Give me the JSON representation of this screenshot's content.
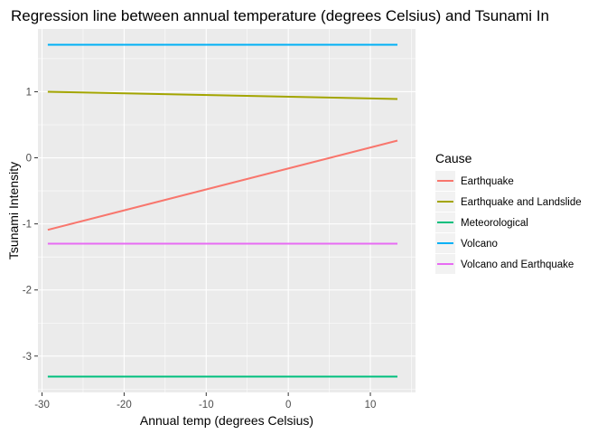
{
  "chart_data": {
    "type": "line",
    "title": "Regression line between annual temperature (degrees Celsius) and Tsunami In",
    "xlabel": "Annual temp (degrees Celsius)",
    "ylabel": "Tsunami Intensity",
    "xlim": [
      -30.5,
      15.5
    ],
    "ylim": [
      -3.55,
      1.95
    ],
    "xticks": [
      -30,
      -20,
      -10,
      0,
      10
    ],
    "xtick_labels": [
      "-30",
      "-20",
      "-10",
      "0",
      "10"
    ],
    "yticks": [
      -3,
      -2,
      -1,
      0,
      1
    ],
    "ytick_labels": [
      "-3",
      "-2",
      "-1",
      "0",
      "1"
    ],
    "grid": true,
    "legend_title": "Cause",
    "legend_position": "right",
    "series": [
      {
        "name": "Earthquake",
        "color": "#F8766D",
        "x": [
          -29.3,
          13.3
        ],
        "y": [
          -1.09,
          0.26
        ]
      },
      {
        "name": "Earthquake and Landslide",
        "color": "#A3A500",
        "x": [
          -29.3,
          13.3
        ],
        "y": [
          1.0,
          0.89
        ]
      },
      {
        "name": "Meteorological",
        "color": "#00BF7D",
        "x": [
          -29.3,
          13.3
        ],
        "y": [
          -3.31,
          -3.31
        ]
      },
      {
        "name": "Volcano",
        "color": "#00B0F6",
        "x": [
          -29.3,
          13.3
        ],
        "y": [
          1.71,
          1.71
        ]
      },
      {
        "name": "Volcano and Earthquake",
        "color": "#E76BF3",
        "x": [
          -29.3,
          13.3
        ],
        "y": [
          -1.3,
          -1.3
        ]
      }
    ]
  }
}
